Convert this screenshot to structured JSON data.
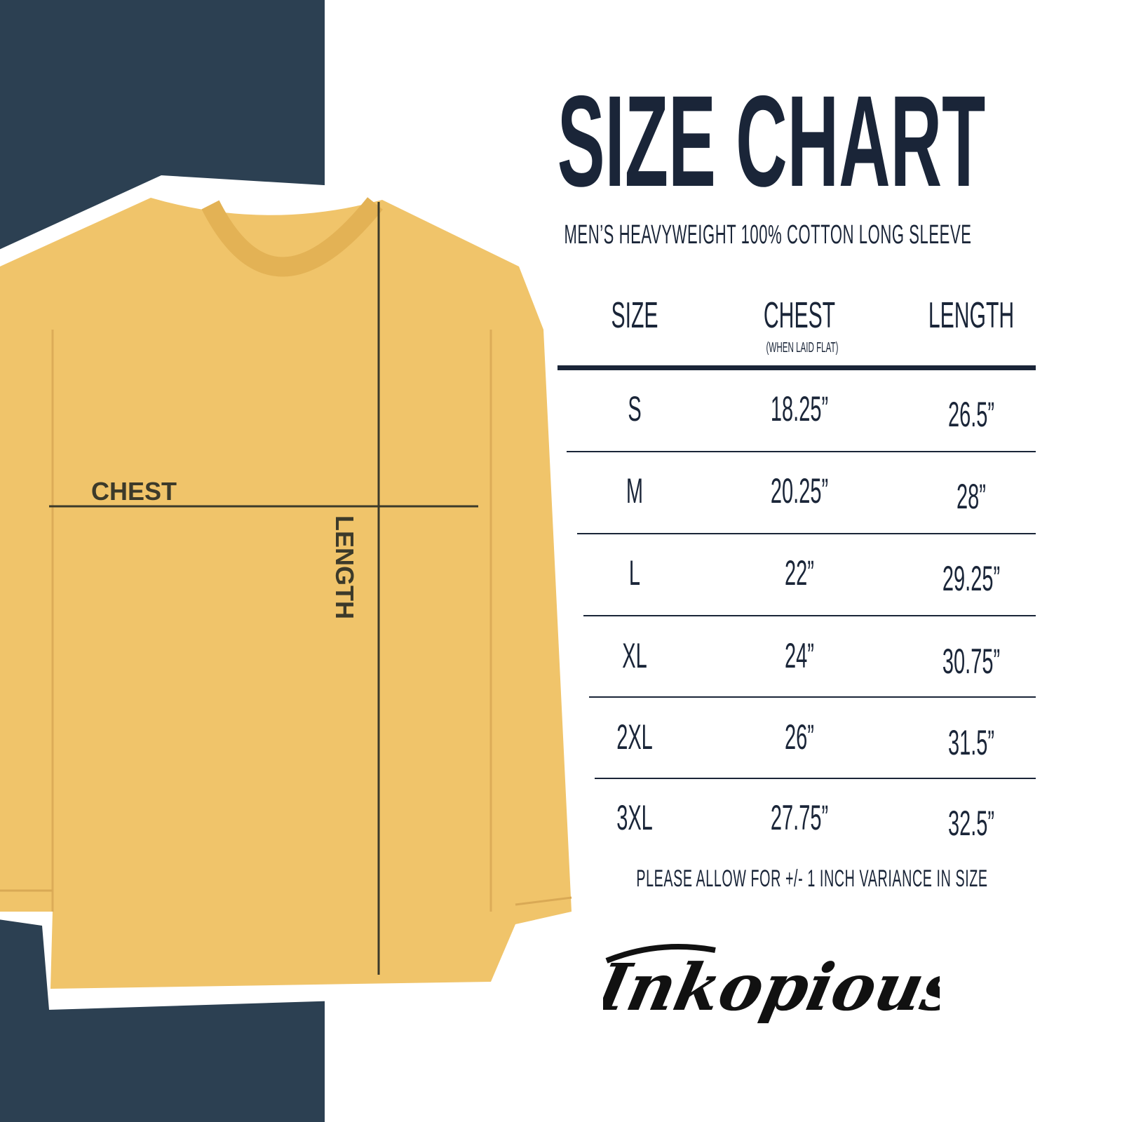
{
  "title": "SIZE CHART",
  "subtitle": "MEN’S HEAVYWEIGHT 100% COTTON LONG SLEEVE",
  "colors": {
    "navy_band": "#2c4052",
    "text": "#1a2538",
    "shirt": "#f0c46a"
  },
  "shirt_labels": {
    "chest": "CHEST",
    "length": "LENGTH"
  },
  "table": {
    "headers": {
      "size": "SIZE",
      "chest": "CHEST",
      "chest_note": "(WHEN LAID FLAT)",
      "length": "LENGTH"
    },
    "rows": [
      {
        "size": "S",
        "chest": "18.25”",
        "length": "26.5”"
      },
      {
        "size": "M",
        "chest": "20.25”",
        "length": "28”"
      },
      {
        "size": "L",
        "chest": "22”",
        "length": "29.25”"
      },
      {
        "size": "XL",
        "chest": "24”",
        "length": "30.75”"
      },
      {
        "size": "2XL",
        "chest": "26”",
        "length": "31.5”"
      },
      {
        "size": "3XL",
        "chest": "27.75”",
        "length": "32.5”"
      }
    ]
  },
  "footnote": "PLEASE ALLOW FOR +/- 1 INCH VARIANCE IN SIZE",
  "brand": "Inkopious"
}
